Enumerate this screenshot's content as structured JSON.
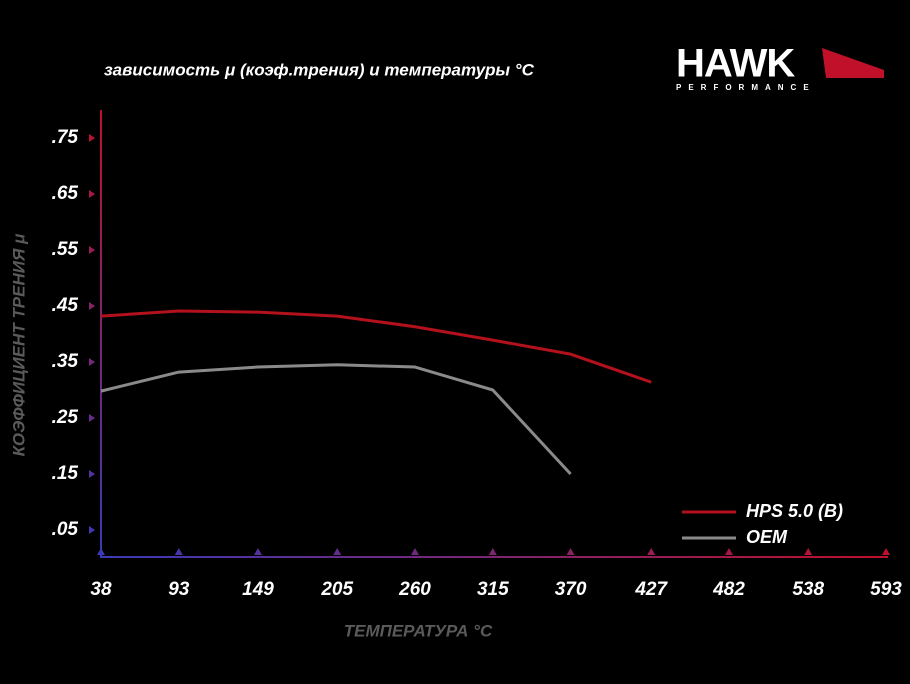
{
  "chart_data": {
    "type": "line",
    "title": "зависимость μ (коэф.трения) и температуры °C",
    "logo_text": "HAWK",
    "logo_subtext": "PERFORMANCE",
    "x_label": "ТЕМПЕРАТУРА °C",
    "y_label": "КОЭФФИЦИЕНТ ТРЕНИЯ μ",
    "x": [
      38,
      93,
      149,
      205,
      260,
      315,
      370,
      427
    ],
    "series": [
      {
        "name": "HPS 5.0 (B)",
        "color": "#b3111c",
        "values": [
          0.432,
          0.441,
          0.439,
          0.432,
          0.413,
          0.389,
          0.364,
          0.314
        ]
      },
      {
        "name": "OEM",
        "color": "#8a8a8a",
        "values": [
          0.298,
          0.332,
          0.341,
          0.345,
          0.341,
          0.3,
          0.15,
          null
        ]
      }
    ],
    "xlim": [
      38,
      593
    ],
    "xticks": [
      38,
      93,
      149,
      205,
      260,
      315,
      370,
      427,
      482,
      538,
      593
    ],
    "ylim": [
      0,
      0.8
    ],
    "yticks": [
      {
        "value": 0.05,
        "label": ".05"
      },
      {
        "value": 0.15,
        "label": ".15"
      },
      {
        "value": 0.25,
        "label": ".25"
      },
      {
        "value": 0.35,
        "label": ".35"
      },
      {
        "value": 0.45,
        "label": ".45"
      },
      {
        "value": 0.55,
        "label": ".55"
      },
      {
        "value": 0.65,
        "label": ".65"
      },
      {
        "value": 0.75,
        "label": ".75"
      }
    ],
    "grid": false,
    "legend": "lower right"
  }
}
